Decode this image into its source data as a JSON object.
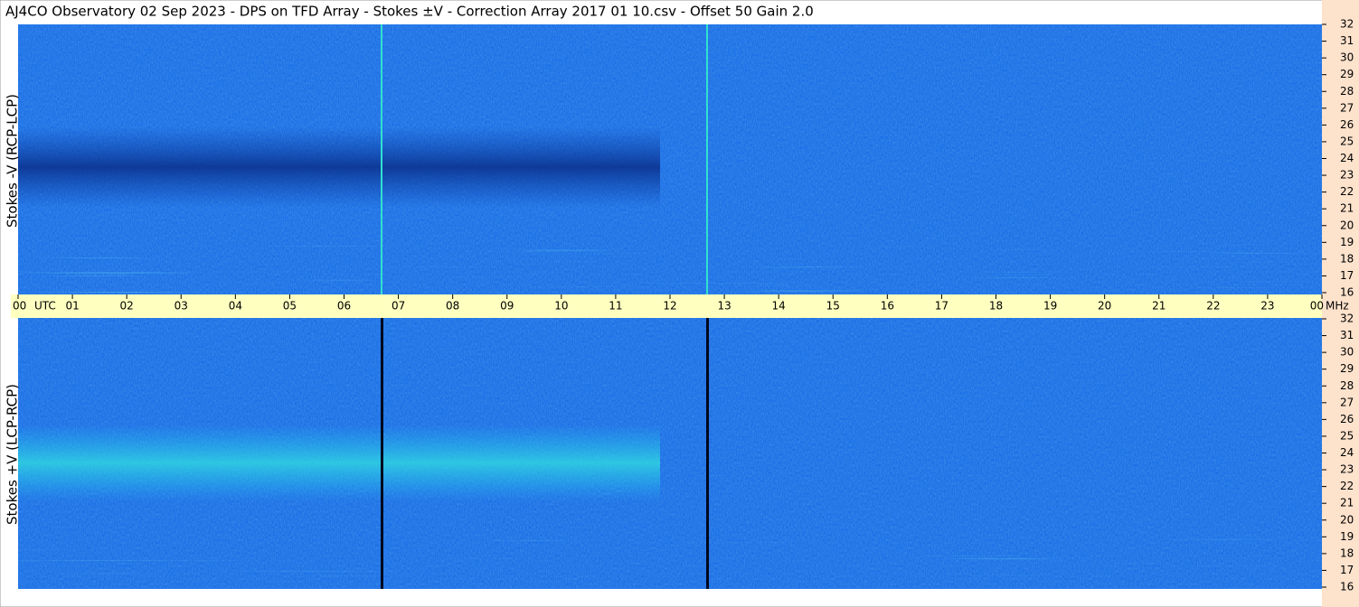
{
  "chart_data": {
    "type": "spectrogram",
    "title": "AJ4CO Observatory  02 Sep 2023  -  DPS on TFD Array  -  Stokes ±V  -  Correction Array 2017 01 10.csv  -  Offset 50  Gain 2.0",
    "panels": [
      {
        "ylabel": "Stokes -V (RCP-LCP)"
      },
      {
        "ylabel": "Stokes +V (LCP-RCP)"
      }
    ],
    "xlabel": "UTC",
    "yunit": "MHz",
    "xlim": [
      0,
      24
    ],
    "xticks": [
      {
        "value": 0,
        "label": "00"
      },
      {
        "value": 1,
        "label": "01"
      },
      {
        "value": 2,
        "label": "02"
      },
      {
        "value": 3,
        "label": "03"
      },
      {
        "value": 4,
        "label": "04"
      },
      {
        "value": 5,
        "label": "05"
      },
      {
        "value": 6,
        "label": "06"
      },
      {
        "value": 7,
        "label": "07"
      },
      {
        "value": 8,
        "label": "08"
      },
      {
        "value": 9,
        "label": "09"
      },
      {
        "value": 10,
        "label": "10"
      },
      {
        "value": 11,
        "label": "11"
      },
      {
        "value": 12,
        "label": "12"
      },
      {
        "value": 13,
        "label": "13"
      },
      {
        "value": 14,
        "label": "14"
      },
      {
        "value": 15,
        "label": "15"
      },
      {
        "value": 16,
        "label": "16"
      },
      {
        "value": 17,
        "label": "17"
      },
      {
        "value": 18,
        "label": "18"
      },
      {
        "value": 19,
        "label": "19"
      },
      {
        "value": 20,
        "label": "20"
      },
      {
        "value": 21,
        "label": "21"
      },
      {
        "value": 22,
        "label": "22"
      },
      {
        "value": 23,
        "label": "23"
      },
      {
        "value": 24,
        "label": "00"
      }
    ],
    "ylim": [
      16,
      32
    ],
    "yticks": [
      16,
      17,
      18,
      19,
      20,
      21,
      22,
      23,
      24,
      25,
      26,
      27,
      28,
      29,
      30,
      31,
      32
    ]
  }
}
